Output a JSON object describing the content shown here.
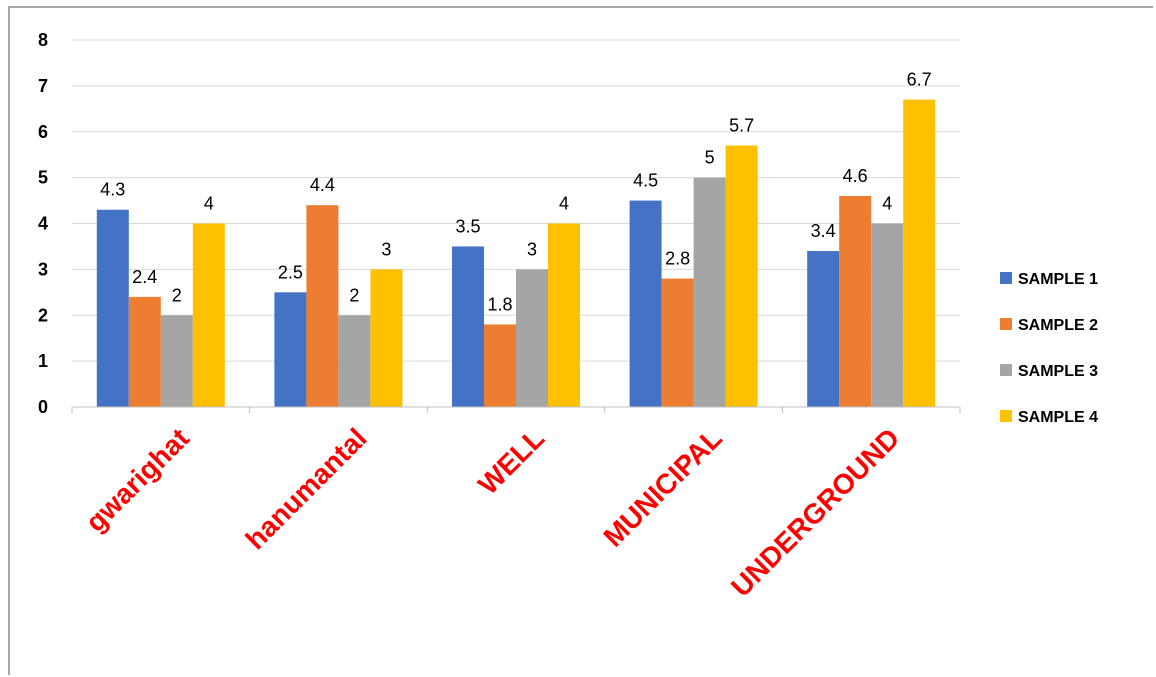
{
  "chart_data": {
    "type": "bar",
    "title": "",
    "xlabel": "",
    "ylabel": "",
    "categories": [
      "gwarighat",
      "hanumantal",
      "WELL",
      "MUNICIPAL",
      "UNDERGROUND"
    ],
    "series": [
      {
        "name": "SAMPLE 1",
        "color": "#4472c4",
        "values": [
          4.3,
          2.5,
          3.5,
          4.5,
          3.4
        ]
      },
      {
        "name": "SAMPLE 2",
        "color": "#ed7d31",
        "values": [
          2.4,
          4.4,
          1.8,
          2.8,
          4.6
        ]
      },
      {
        "name": "SAMPLE 3",
        "color": "#a5a5a5",
        "values": [
          2,
          2,
          3,
          5,
          4
        ]
      },
      {
        "name": "SAMPLE 4",
        "color": "#ffc000",
        "values": [
          4,
          3,
          4,
          5.7,
          6.7
        ]
      }
    ],
    "ylim": [
      0,
      8
    ],
    "yticks": [
      0,
      1,
      2,
      3,
      4,
      5,
      6,
      7,
      8
    ],
    "grid": true,
    "legend": "right",
    "category_label_color": "#ff0000"
  }
}
